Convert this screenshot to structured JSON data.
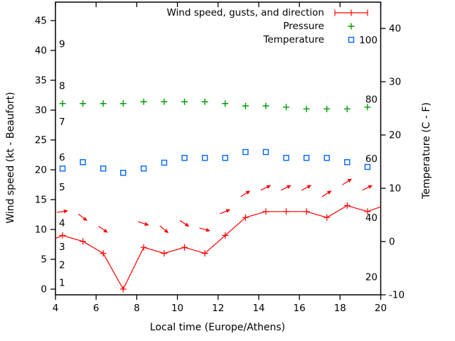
{
  "figure": {
    "background": "#ffffff",
    "text_color": "#000000",
    "border_color": "#000000"
  },
  "colors": {
    "wind": "#ff0000",
    "pressure": "#009e00",
    "temperature": "#0066ff"
  },
  "axes": {
    "x": {
      "label": "Local time (Europe/Athens)",
      "ticks": [
        4,
        6,
        8,
        10,
        12,
        14,
        16,
        18,
        20
      ],
      "range": [
        4,
        20
      ],
      "mirrored_top_ticks": true
    },
    "y_left": {
      "label": "Wind speed (kt - Beaufort)",
      "ticks": [
        0,
        5,
        10,
        15,
        20,
        25,
        30,
        35,
        40,
        45
      ]
    },
    "y_left_inner_beaufort": {
      "labels": [
        "1",
        "2",
        "3",
        "4",
        "5",
        "6",
        "7",
        "8",
        "9"
      ],
      "kt_positions": [
        1,
        4,
        7,
        11,
        17,
        22,
        28,
        34,
        41
      ]
    },
    "y_right": {
      "label": "Temperature (C - F)",
      "ticks": [
        -10,
        0,
        10,
        20,
        30,
        40
      ]
    },
    "y_right_inner_fahrenheit": {
      "labels": [
        "20",
        "40",
        "60",
        "80",
        "100"
      ]
    }
  },
  "legend": {
    "position": "top-right-inside",
    "items": [
      {
        "label": "Wind speed, gusts, and direction",
        "marker": "errorbar-line",
        "color": "#ff0000"
      },
      {
        "label": "Pressure",
        "marker": "plus",
        "color": "#009e00"
      },
      {
        "label": "Temperature",
        "marker": "open-square",
        "color": "#0066ff"
      }
    ]
  },
  "chart_data": {
    "type": "line",
    "title": "",
    "xlabel": "Local time (Europe/Athens)",
    "ylabel_left": "Wind speed (kt - Beaufort)",
    "ylabel_right": "Temperature (C - F)",
    "x_range": [
      4,
      20
    ],
    "y_left_range_kt": [
      0,
      45
    ],
    "y_right_range_c": [
      -10,
      40
    ],
    "grid": false,
    "x_hours": [
      4.35,
      5.35,
      6.35,
      7.33,
      8.34,
      9.35,
      10.35,
      11.35,
      12.35,
      13.35,
      14.35,
      15.35,
      16.35,
      17.35,
      18.35,
      19.35
    ],
    "series": [
      {
        "name": "Wind speed",
        "type": "line",
        "marker": "plus",
        "color": "#ff0000",
        "axis": "left-kt",
        "values_kt": [
          9,
          8,
          6,
          0,
          7,
          6,
          7,
          6,
          9,
          12,
          13,
          13,
          13,
          12,
          14,
          13
        ],
        "edge_start": {
          "x": 4.0,
          "kt": 8.5
        },
        "edge_end": {
          "x": 20.0,
          "kt": 13.8
        }
      },
      {
        "name": "Wind gusts and direction",
        "type": "vector-arrows",
        "color": "#ff0000",
        "axis": "left-kt",
        "values_kt": [
          13,
          12,
          10,
          null,
          11,
          10,
          11,
          10,
          13,
          16,
          17,
          17,
          17,
          16,
          18,
          17
        ],
        "angles_deg_screen": [
          -8,
          38,
          35,
          null,
          18,
          40,
          33,
          15,
          -23,
          -32,
          -26,
          -26,
          -28,
          -33,
          -33,
          -26
        ]
      },
      {
        "name": "Pressure",
        "type": "scatter",
        "marker": "plus",
        "color": "#009e00",
        "axis": "left-axis-units (no pressure scale shown)",
        "values_axis_units": [
          31.1,
          31.1,
          31.1,
          31.1,
          31.4,
          31.4,
          31.4,
          31.4,
          31.1,
          30.7,
          30.7,
          30.5,
          30.2,
          30.2,
          30.2,
          30.5
        ]
      },
      {
        "name": "Temperature",
        "type": "scatter",
        "marker": "open-square",
        "color": "#0066ff",
        "axis": "right-celsius",
        "values_c": [
          13.7,
          14.9,
          13.7,
          12.9,
          13.7,
          14.8,
          15.7,
          15.7,
          15.7,
          16.8,
          16.8,
          15.7,
          15.7,
          15.7,
          14.9,
          14.0
        ]
      }
    ],
    "legend_entries": [
      "Wind speed, gusts, and direction",
      "Pressure",
      "Temperature"
    ]
  }
}
